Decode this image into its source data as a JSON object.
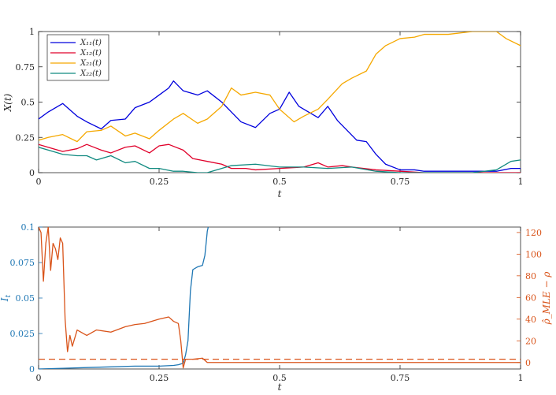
{
  "chart_data": [
    {
      "type": "line",
      "xlabel": "t",
      "ylabel": "X(t)",
      "xlim": [
        0,
        1
      ],
      "ylim": [
        0,
        1
      ],
      "x_ticks": [
        "0",
        "0.25",
        "0.5",
        "0.75",
        "1"
      ],
      "y_ticks": [
        "0",
        "0.25",
        "0.5",
        "0.75",
        "1"
      ],
      "legend_position": "top-left",
      "series": [
        {
          "name": "X₁₁(t)",
          "color": "#0000dd",
          "x": [
            0,
            0.02,
            0.05,
            0.08,
            0.1,
            0.13,
            0.15,
            0.18,
            0.2,
            0.23,
            0.25,
            0.27,
            0.28,
            0.3,
            0.33,
            0.35,
            0.38,
            0.4,
            0.42,
            0.45,
            0.48,
            0.5,
            0.52,
            0.54,
            0.56,
            0.58,
            0.6,
            0.62,
            0.64,
            0.66,
            0.68,
            0.7,
            0.72,
            0.75,
            0.78,
            0.8,
            0.85,
            0.9,
            0.95,
            0.98,
            1
          ],
          "y": [
            0.38,
            0.43,
            0.49,
            0.4,
            0.36,
            0.31,
            0.37,
            0.38,
            0.46,
            0.5,
            0.55,
            0.6,
            0.65,
            0.58,
            0.55,
            0.58,
            0.5,
            0.43,
            0.36,
            0.32,
            0.42,
            0.45,
            0.57,
            0.47,
            0.43,
            0.39,
            0.47,
            0.37,
            0.3,
            0.23,
            0.22,
            0.13,
            0.06,
            0.02,
            0.02,
            0.01,
            0.01,
            0.01,
            0.01,
            0.03,
            0.03
          ]
        },
        {
          "name": "X₁₂(t)",
          "color": "#e0002a",
          "x": [
            0,
            0.03,
            0.05,
            0.08,
            0.1,
            0.13,
            0.15,
            0.18,
            0.2,
            0.23,
            0.25,
            0.27,
            0.3,
            0.32,
            0.35,
            0.38,
            0.4,
            0.43,
            0.45,
            0.5,
            0.55,
            0.58,
            0.6,
            0.63,
            0.65,
            0.7,
            0.75,
            0.8,
            0.9,
            1
          ],
          "y": [
            0.2,
            0.17,
            0.15,
            0.17,
            0.2,
            0.16,
            0.14,
            0.18,
            0.19,
            0.14,
            0.19,
            0.2,
            0.16,
            0.1,
            0.08,
            0.06,
            0.03,
            0.03,
            0.02,
            0.03,
            0.04,
            0.07,
            0.04,
            0.05,
            0.04,
            0.02,
            0.01,
            0.0,
            0.0,
            0.0
          ]
        },
        {
          "name": "X₂₁(t)",
          "color": "#f5a800",
          "x": [
            0,
            0.02,
            0.05,
            0.08,
            0.1,
            0.13,
            0.15,
            0.18,
            0.2,
            0.23,
            0.25,
            0.28,
            0.3,
            0.33,
            0.35,
            0.38,
            0.4,
            0.42,
            0.45,
            0.48,
            0.5,
            0.53,
            0.55,
            0.58,
            0.6,
            0.63,
            0.65,
            0.68,
            0.7,
            0.72,
            0.75,
            0.78,
            0.8,
            0.85,
            0.9,
            0.95,
            0.97,
            1
          ],
          "y": [
            0.23,
            0.25,
            0.27,
            0.22,
            0.29,
            0.3,
            0.33,
            0.26,
            0.28,
            0.24,
            0.3,
            0.38,
            0.42,
            0.35,
            0.38,
            0.47,
            0.6,
            0.55,
            0.57,
            0.55,
            0.45,
            0.36,
            0.4,
            0.45,
            0.52,
            0.63,
            0.67,
            0.72,
            0.84,
            0.9,
            0.95,
            0.96,
            0.98,
            0.98,
            1.0,
            1.0,
            0.95,
            0.9
          ]
        },
        {
          "name": "X₂₂(t)",
          "color": "#108a80",
          "x": [
            0,
            0.03,
            0.05,
            0.08,
            0.1,
            0.12,
            0.15,
            0.18,
            0.2,
            0.23,
            0.25,
            0.28,
            0.3,
            0.33,
            0.35,
            0.4,
            0.45,
            0.5,
            0.55,
            0.6,
            0.65,
            0.7,
            0.75,
            0.8,
            0.9,
            0.95,
            0.98,
            1
          ],
          "y": [
            0.18,
            0.15,
            0.13,
            0.12,
            0.12,
            0.09,
            0.12,
            0.07,
            0.08,
            0.03,
            0.03,
            0.01,
            0.01,
            0.0,
            0.0,
            0.05,
            0.06,
            0.04,
            0.04,
            0.03,
            0.04,
            0.01,
            0.0,
            0.0,
            0.0,
            0.02,
            0.08,
            0.09
          ]
        }
      ]
    },
    {
      "type": "line",
      "xlabel": "t",
      "ylabel": "I_t",
      "ylabel_right": "ρ̂_MLE − ρ",
      "xlim": [
        0,
        1
      ],
      "ylim": [
        0,
        0.1
      ],
      "ylim_right": [
        -6,
        125
      ],
      "x_ticks": [
        "0",
        "0.25",
        "0.5",
        "0.75",
        "1"
      ],
      "y_ticks": [
        "0",
        "0.025",
        "0.05",
        "0.075",
        "0.1"
      ],
      "y_ticks_right": [
        "0",
        "20",
        "40",
        "60",
        "80",
        "100",
        "120"
      ],
      "left_color": "#1f77b4",
      "right_color": "#d95319",
      "series": [
        {
          "axis": "left",
          "color": "#1f77b4",
          "x": [
            0,
            0.05,
            0.1,
            0.15,
            0.2,
            0.25,
            0.28,
            0.29,
            0.3,
            0.305,
            0.31,
            0.315,
            0.32,
            0.33,
            0.34,
            0.345,
            0.348,
            0.35,
            0.352
          ],
          "y": [
            0,
            0.0005,
            0.001,
            0.0015,
            0.002,
            0.002,
            0.0025,
            0.003,
            0.004,
            0.01,
            0.02,
            0.055,
            0.07,
            0.072,
            0.073,
            0.08,
            0.09,
            0.097,
            0.1
          ]
        },
        {
          "axis": "right",
          "color": "#d95319",
          "x": [
            0,
            0.005,
            0.01,
            0.015,
            0.02,
            0.025,
            0.03,
            0.035,
            0.04,
            0.045,
            0.05,
            0.055,
            0.06,
            0.065,
            0.07,
            0.08,
            0.1,
            0.12,
            0.15,
            0.18,
            0.2,
            0.22,
            0.25,
            0.27,
            0.28,
            0.29,
            0.295,
            0.3,
            0.305,
            0.31,
            0.32,
            0.34,
            0.35,
            0.4,
            0.5,
            0.6,
            0.7,
            0.8,
            0.9,
            1
          ],
          "y": [
            125,
            120,
            75,
            110,
            125,
            85,
            110,
            105,
            95,
            115,
            110,
            40,
            10,
            25,
            15,
            30,
            25,
            30,
            28,
            33,
            35,
            36,
            40,
            42,
            38,
            36,
            20,
            -5,
            3,
            3,
            3,
            4,
            0,
            0,
            0,
            0,
            0,
            0,
            0,
            0
          ]
        },
        {
          "axis": "right",
          "color": "#d95319",
          "style": "dashed",
          "x": [
            0,
            1
          ],
          "y": [
            3,
            3
          ]
        }
      ]
    }
  ]
}
